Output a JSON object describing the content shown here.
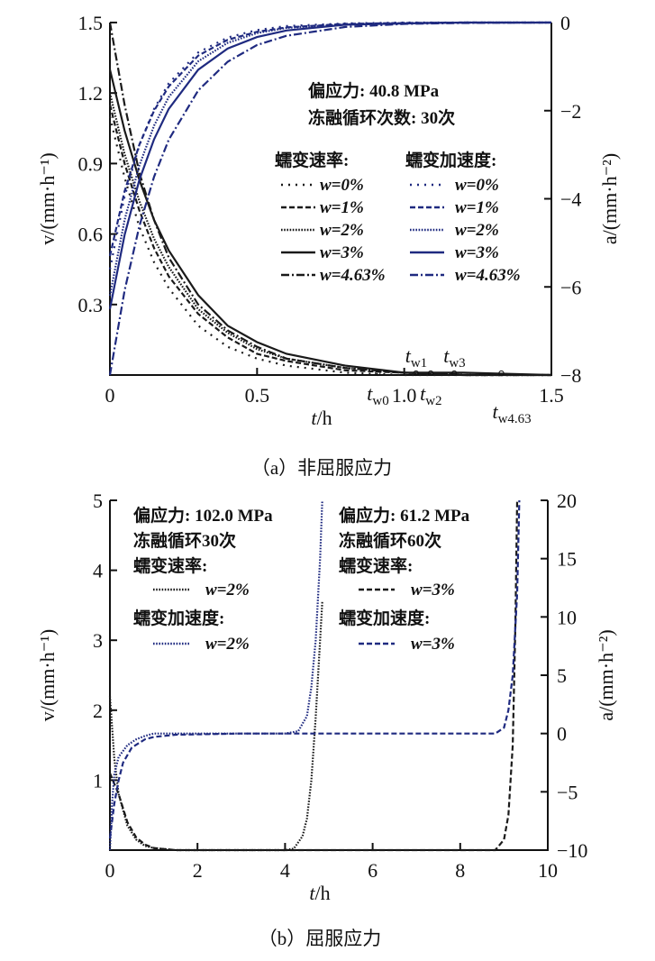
{
  "chart_data": [
    {
      "type": "line",
      "caption": "（a）非屈服应力",
      "xlabel_italic": "t",
      "xlabel_unit": "/h",
      "ylabel": "v/(mm·h⁻¹)",
      "y2label": "a/(mm·h⁻²)",
      "xlim": [
        0,
        1.5
      ],
      "ylim": [
        0,
        1.5
      ],
      "y2lim": [
        -8,
        0
      ],
      "xticks": [
        0,
        0.5,
        1.0,
        1.5
      ],
      "xtick_labels": [
        "0",
        "0.5",
        "1.0",
        "1.5"
      ],
      "yticks": [
        0.3,
        0.6,
        0.9,
        1.2,
        1.5
      ],
      "ytick_labels": [
        "0.3",
        "0.6",
        "0.9",
        "1.2",
        "1.5"
      ],
      "y2ticks": [
        0,
        -2,
        -4,
        -6,
        -8
      ],
      "y2tick_labels": [
        "0",
        "−2",
        "−4",
        "−6",
        "−8"
      ],
      "annotations": [
        "偏应力: 40.8 MPa",
        "冻融循环次数: 30次"
      ],
      "legend_headers": [
        "蠕变速率:",
        "蠕变加速度:"
      ],
      "x": [
        0,
        0.05,
        0.1,
        0.15,
        0.2,
        0.3,
        0.4,
        0.5,
        0.6,
        0.8,
        1.0,
        1.2,
        1.5
      ],
      "series": [
        {
          "name": "w=0%",
          "group": "velocity",
          "axis": "left",
          "style": "sparse-dot",
          "color": "#1a1a1a",
          "values": [
            1.1,
            0.84,
            0.63,
            0.48,
            0.37,
            0.21,
            0.12,
            0.07,
            0.04,
            0.01,
            0,
            0,
            0
          ]
        },
        {
          "name": "w=1%",
          "group": "velocity",
          "axis": "left",
          "style": "dash",
          "color": "#1a1a1a",
          "values": [
            1.15,
            0.9,
            0.7,
            0.54,
            0.42,
            0.26,
            0.16,
            0.09,
            0.06,
            0.02,
            0.01,
            0,
            0
          ]
        },
        {
          "name": "w=2%",
          "group": "velocity",
          "axis": "left",
          "style": "dot",
          "color": "#1a1a1a",
          "values": [
            1.2,
            0.94,
            0.74,
            0.58,
            0.46,
            0.28,
            0.18,
            0.11,
            0.07,
            0.03,
            0.01,
            0,
            0
          ]
        },
        {
          "name": "w=3%",
          "group": "velocity",
          "axis": "left",
          "style": "solid",
          "color": "#1a1a1a",
          "values": [
            1.3,
            1.04,
            0.83,
            0.66,
            0.53,
            0.34,
            0.21,
            0.14,
            0.09,
            0.04,
            0.01,
            0.01,
            0
          ]
        },
        {
          "name": "w=4.63%",
          "group": "velocity",
          "axis": "left",
          "style": "dashdot",
          "color": "#1a1a1a",
          "values": [
            1.5,
            1.15,
            0.86,
            0.66,
            0.5,
            0.3,
            0.19,
            0.12,
            0.07,
            0.03,
            0.01,
            0,
            0
          ]
        },
        {
          "name": "w=0%",
          "group": "acceleration",
          "axis": "right",
          "style": "sparse-dot",
          "color": "#1f2a80",
          "values": [
            -5.6,
            -3.95,
            -2.78,
            -1.96,
            -1.38,
            -0.68,
            -0.34,
            -0.17,
            -0.08,
            -0.02,
            0,
            0,
            0
          ]
        },
        {
          "name": "w=1%",
          "group": "acceleration",
          "axis": "right",
          "style": "dash",
          "color": "#1f2a80",
          "values": [
            -5.3,
            -3.83,
            -2.77,
            -2.0,
            -1.45,
            -0.75,
            -0.39,
            -0.21,
            -0.11,
            -0.03,
            -0.01,
            0,
            0
          ]
        },
        {
          "name": "w=2%",
          "group": "acceleration",
          "axis": "right",
          "style": "dot",
          "color": "#1f2a80",
          "values": [
            -6.2,
            -4.48,
            -3.24,
            -2.34,
            -1.69,
            -0.88,
            -0.46,
            -0.24,
            -0.12,
            -0.04,
            -0.01,
            0,
            0
          ]
        },
        {
          "name": "w=3%",
          "group": "acceleration",
          "axis": "right",
          "style": "solid",
          "color": "#1f2a80",
          "values": [
            -6.5,
            -4.82,
            -3.57,
            -2.65,
            -1.96,
            -1.07,
            -0.59,
            -0.33,
            -0.18,
            -0.05,
            -0.02,
            0,
            0
          ]
        },
        {
          "name": "w=4.63%",
          "group": "acceleration",
          "axis": "right",
          "style": "dashdot",
          "color": "#1f2a80",
          "values": [
            -8,
            -6.08,
            -4.62,
            -3.5,
            -2.66,
            -1.54,
            -0.89,
            -0.51,
            -0.3,
            -0.1,
            -0.03,
            -0.01,
            0
          ]
        }
      ],
      "markers": [
        {
          "label": "t",
          "sub": "w0",
          "t": 0.91,
          "place": "below"
        },
        {
          "label": "t",
          "sub": "w1",
          "t": 1.04,
          "place": "above"
        },
        {
          "label": "t",
          "sub": "w2",
          "t": 1.09,
          "place": "below"
        },
        {
          "label": "t",
          "sub": "w3",
          "t": 1.17,
          "place": "above"
        },
        {
          "label": "t",
          "sub": "w4.63",
          "t": 1.33,
          "place": "below2"
        }
      ]
    },
    {
      "type": "line",
      "caption": "（b）屈服应力",
      "xlabel_italic": "t",
      "xlabel_unit": "/h",
      "ylabel": "v/(mm·h⁻¹)",
      "y2label": "a/(mm·h⁻²)",
      "xlim": [
        0,
        10
      ],
      "ylim": [
        0,
        5
      ],
      "y2lim": [
        -10,
        20
      ],
      "xticks": [
        0,
        2,
        4,
        6,
        8,
        10
      ],
      "xtick_labels": [
        "0",
        "2",
        "4",
        "6",
        "8",
        "10"
      ],
      "yticks": [
        1,
        2,
        3,
        4,
        5
      ],
      "ytick_labels": [
        "1",
        "2",
        "3",
        "4",
        "5"
      ],
      "y2ticks": [
        -10,
        -5,
        0,
        5,
        10,
        15,
        20
      ],
      "y2tick_labels": [
        "−10",
        "−5",
        "0",
        "5",
        "10",
        "15",
        "20"
      ],
      "annotations_left": [
        "偏应力: 102.0 MPa",
        "冻融循环30次",
        "蠕变速率:",
        "w=2%",
        "蠕变加速度:",
        "w=2%"
      ],
      "annotations_right": [
        "偏应力: 61.2 MPa",
        "冻融循环60次",
        "蠕变速率:",
        "w=3%",
        "蠕变加速度:",
        "w=3%"
      ],
      "series": [
        {
          "name": "蠕变速率 w=2%",
          "axis": "left",
          "style": "dot",
          "color": "#1a1a1a",
          "x": [
            0,
            0.1,
            0.2,
            0.4,
            0.6,
            0.8,
            1,
            1.5,
            2,
            3,
            4,
            4.2,
            4.4,
            4.5,
            4.6,
            4.7,
            4.8,
            4.85
          ],
          "values": [
            2.2,
            1.3,
            0.8,
            0.35,
            0.15,
            0.06,
            0.03,
            0,
            0,
            0,
            0,
            0.02,
            0.2,
            0.45,
            1.0,
            1.9,
            3.0,
            3.55
          ]
        },
        {
          "name": "蠕变速率 w=3%",
          "axis": "left",
          "style": "dash",
          "color": "#1a1a1a",
          "x": [
            0,
            0.2,
            0.4,
            0.6,
            0.8,
            1,
            1.5,
            3,
            6,
            8.8,
            9.0,
            9.1,
            9.2,
            9.26,
            9.3
          ],
          "values": [
            1.1,
            0.8,
            0.4,
            0.18,
            0.08,
            0.03,
            0,
            0,
            0,
            0,
            0.15,
            0.5,
            1.5,
            3.2,
            5
          ]
        },
        {
          "name": "蠕变加速度 w=2%",
          "axis": "right",
          "style": "dot",
          "color": "#1f2a80",
          "x": [
            0,
            0.05,
            0.1,
            0.2,
            0.4,
            0.6,
            0.8,
            1,
            2,
            4,
            4.3,
            4.5,
            4.6,
            4.7,
            4.8,
            4.85
          ],
          "values": [
            -10,
            -6,
            -3.5,
            -2,
            -1,
            -0.5,
            -0.2,
            0,
            0,
            0,
            0.2,
            1.5,
            4,
            8,
            15,
            20
          ]
        },
        {
          "name": "蠕变加速度 w=3%",
          "axis": "right",
          "style": "dash",
          "color": "#1f2a80",
          "x": [
            0,
            0.1,
            0.2,
            0.3,
            0.5,
            0.8,
            1,
            1.5,
            3,
            8.8,
            9.0,
            9.1,
            9.2,
            9.3,
            9.35
          ],
          "values": [
            -9,
            -6,
            -4,
            -2.5,
            -1.2,
            -0.5,
            -0.3,
            -0.1,
            0,
            0,
            0.5,
            2,
            5,
            12,
            20
          ]
        }
      ]
    }
  ]
}
